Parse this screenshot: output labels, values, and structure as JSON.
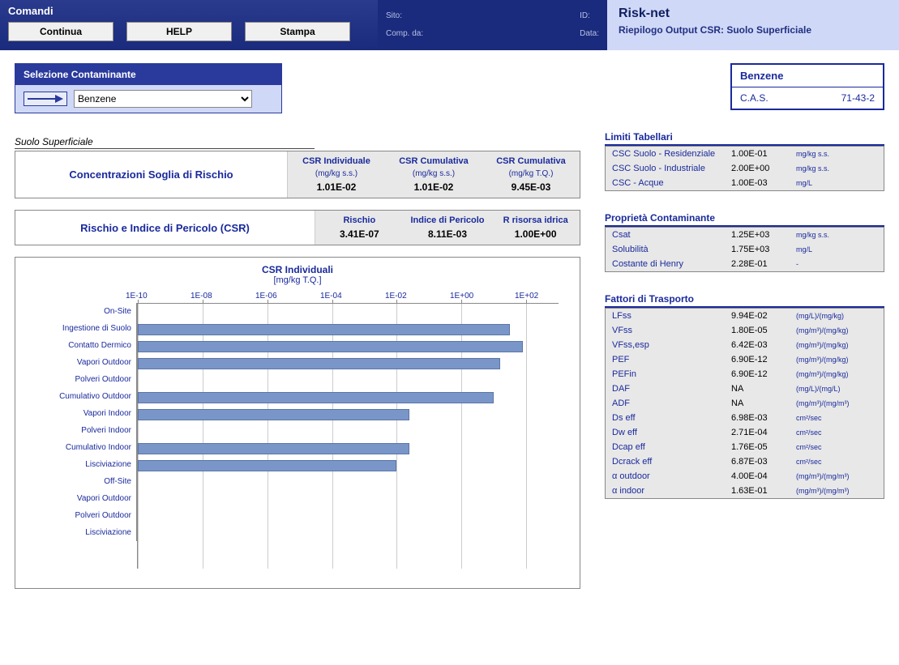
{
  "commands_label": "Comandi",
  "buttons": {
    "continua": "Continua",
    "help": "HELP",
    "stampa": "Stampa"
  },
  "meta": {
    "sito": "Sito:",
    "id": "ID:",
    "comp": "Comp. da:",
    "data": "Data:"
  },
  "app": {
    "name": "Risk-net",
    "subtitle": "Riepilogo Output CSR: Suolo Superficiale"
  },
  "selector": {
    "title": "Selezione Contaminante",
    "value": "Benzene"
  },
  "contaminant": {
    "name": "Benzene",
    "cas_label": "C.A.S.",
    "cas": "71-43-2"
  },
  "suolo_title": "Suolo Superficiale",
  "csr": {
    "title": "Concentrazioni Soglia di Rischio",
    "cols": [
      {
        "label": "CSR Individuale",
        "unit": "(mg/kg s.s.)",
        "val": "1.01E-02"
      },
      {
        "label": "CSR Cumulativa",
        "unit": "(mg/kg s.s.)",
        "val": "1.01E-02"
      },
      {
        "label": "CSR Cumulativa",
        "unit": "(mg/kg T.Q.)",
        "val": "9.45E-03"
      }
    ]
  },
  "risk": {
    "title": "Rischio e Indice di Pericolo (CSR)",
    "cols": [
      {
        "label": "Rischio",
        "val": "3.41E-07"
      },
      {
        "label": "Indice di Pericolo",
        "val": "8.11E-03"
      },
      {
        "label": "R risorsa idrica",
        "val": "1.00E+00"
      }
    ]
  },
  "chart": {
    "title": "CSR Individuali",
    "subtitle": "[mg/kg T.Q.]",
    "xlabels": [
      "1E-10",
      "1E-08",
      "1E-06",
      "1E-04",
      "1E-02",
      "1E+00",
      "1E+02"
    ],
    "xmin_exp": -10,
    "xmax_exp": 3,
    "bar_color": "#7a96c8",
    "rows": [
      {
        "label": "On-Site",
        "exp": null
      },
      {
        "label": "Ingestione di Suolo",
        "exp": 1.5
      },
      {
        "label": "Contatto Dermico",
        "exp": 1.9
      },
      {
        "label": "Vapori Outdoor",
        "exp": 1.2
      },
      {
        "label": "Polveri Outdoor",
        "exp": null
      },
      {
        "label": "Cumulativo Outdoor",
        "exp": 1.0
      },
      {
        "label": "Vapori Indoor",
        "exp": -1.6
      },
      {
        "label": "Polveri Indoor",
        "exp": null
      },
      {
        "label": "Cumulativo Indoor",
        "exp": -1.6
      },
      {
        "label": "Lisciviazione",
        "exp": -2.0
      },
      {
        "label": "Off-Site",
        "exp": null
      },
      {
        "label": "Vapori Outdoor",
        "exp": null
      },
      {
        "label": "Polveri Outdoor",
        "exp": null
      },
      {
        "label": "Lisciviazione",
        "exp": null
      }
    ]
  },
  "limiti": {
    "title": "Limiti Tabellari",
    "rows": [
      {
        "label": "CSC Suolo - Residenziale",
        "val": "1.00E-01",
        "unit": "mg/kg s.s."
      },
      {
        "label": "CSC Suolo - Industriale",
        "val": "2.00E+00",
        "unit": "mg/kg s.s."
      },
      {
        "label": "CSC - Acque",
        "val": "1.00E-03",
        "unit": "mg/L"
      }
    ]
  },
  "prop": {
    "title": "Proprietà Contaminante",
    "rows": [
      {
        "label": "Csat",
        "val": "1.25E+03",
        "unit": "mg/kg s.s."
      },
      {
        "label": "Solubilità",
        "val": "1.75E+03",
        "unit": "mg/L"
      },
      {
        "label": "Costante di Henry",
        "val": "2.28E-01",
        "unit": "-"
      }
    ]
  },
  "fatt": {
    "title": "Fattori di Trasporto",
    "rows": [
      {
        "label": "LFss",
        "val": "9.94E-02",
        "unit": "(mg/L)/(mg/kg)"
      },
      {
        "label": "VFss",
        "val": "1.80E-05",
        "unit": "(mg/m³)/(mg/kg)"
      },
      {
        "label": "VFss,esp",
        "val": "6.42E-03",
        "unit": "(mg/m³)/(mg/kg)"
      },
      {
        "label": "PEF",
        "val": "6.90E-12",
        "unit": "(mg/m³)/(mg/kg)"
      },
      {
        "label": "PEFin",
        "val": "6.90E-12",
        "unit": "(mg/m³)/(mg/kg)"
      },
      {
        "label": "DAF",
        "val": "NA",
        "unit": "(mg/L)/(mg/L)"
      },
      {
        "label": "ADF",
        "val": "NA",
        "unit": "(mg/m³)/(mg/m³)"
      },
      {
        "label": "Ds eff",
        "val": "6.98E-03",
        "unit": "cm²/sec"
      },
      {
        "label": "Dw eff",
        "val": "2.71E-04",
        "unit": "cm²/sec"
      },
      {
        "label": "Dcap eff",
        "val": "1.76E-05",
        "unit": "cm²/sec"
      },
      {
        "label": "Dcrack eff",
        "val": "6.87E-03",
        "unit": "cm²/sec"
      },
      {
        "label": "α outdoor",
        "val": "4.00E-04",
        "unit": "(mg/m³)/(mg/m³)"
      },
      {
        "label": "α indoor",
        "val": "1.63E-01",
        "unit": "(mg/m³)/(mg/m³)"
      }
    ]
  }
}
